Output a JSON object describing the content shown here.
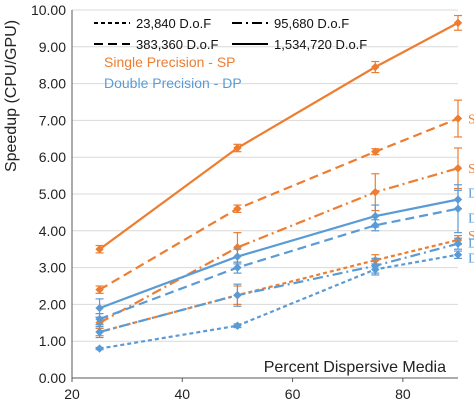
{
  "chart_data": {
    "type": "line",
    "xlabel": "Percent Dispersive Media",
    "ylabel": "Speedup (CPU/GPU)",
    "xlim": [
      20,
      90
    ],
    "ylim": [
      0,
      10
    ],
    "xticks": [
      "20",
      "40",
      "60",
      "80"
    ],
    "yticks": [
      "0.00",
      "1.00",
      "2.00",
      "3.00",
      "4.00",
      "5.00",
      "6.00",
      "7.00",
      "8.00",
      "9.00",
      "10.00"
    ],
    "grid": "horizontal",
    "colors": {
      "sp": "#ED7D31",
      "dp": "#5B9BD5",
      "legend_line": "#000000"
    },
    "legend": [
      {
        "label": "23,840 D.o.F",
        "dash": "short"
      },
      {
        "label": "95,680 D.o.F",
        "dash": "dashdot"
      },
      {
        "label": "383,360 D.o.F",
        "dash": "long"
      },
      {
        "label": "1,534,720 D.o.F",
        "dash": "solid"
      }
    ],
    "precision_notes": [
      {
        "label": "Single Precision - SP",
        "color": "#ED7D31"
      },
      {
        "label": "Double Precision - DP",
        "color": "#5B9BD5"
      }
    ],
    "series": [
      {
        "precision": "SP",
        "dof": "1,534,720 D.o.F",
        "dash": "solid",
        "color": "#ED7D31",
        "marker": "diamond",
        "x": [
          25,
          50,
          75,
          90
        ],
        "y": [
          3.5,
          6.25,
          8.45,
          9.65
        ],
        "err": [
          0.1,
          0.1,
          0.15,
          0.2
        ],
        "end_label": ""
      },
      {
        "precision": "SP",
        "dof": "383,360 D.o.F",
        "dash": "long",
        "color": "#ED7D31",
        "marker": "diamond",
        "x": [
          25,
          50,
          75,
          90
        ],
        "y": [
          2.4,
          4.6,
          6.15,
          7.05
        ],
        "err": [
          0.1,
          0.1,
          0.08,
          0.5
        ],
        "end_label": "SP"
      },
      {
        "precision": "SP",
        "dof": "95,680 D.o.F",
        "dash": "dashdot",
        "color": "#ED7D31",
        "marker": "diamond",
        "x": [
          25,
          50,
          75,
          90
        ],
        "y": [
          1.5,
          3.55,
          5.05,
          5.7
        ],
        "err": [
          0.15,
          0.4,
          0.5,
          0.55
        ],
        "end_label": "SP"
      },
      {
        "precision": "SP",
        "dof": "23,840 D.o.F",
        "dash": "short",
        "color": "#ED7D31",
        "marker": "diamond",
        "x": [
          25,
          50,
          75,
          90
        ],
        "y": [
          1.25,
          2.25,
          3.2,
          3.75
        ],
        "err": [
          0.1,
          0.25,
          0.15,
          0.12
        ],
        "end_label": "SP"
      },
      {
        "precision": "DP",
        "dof": "1,534,720 D.o.F",
        "dash": "solid",
        "color": "#5B9BD5",
        "marker": "diamond",
        "x": [
          25,
          50,
          75,
          90
        ],
        "y": [
          1.9,
          3.3,
          4.4,
          4.85
        ],
        "err": [
          0.25,
          0.2,
          0.3,
          0.25
        ],
        "end_label": "DP"
      },
      {
        "precision": "DP",
        "dof": "383,360 D.o.F",
        "dash": "long",
        "color": "#5B9BD5",
        "marker": "diamond",
        "x": [
          25,
          50,
          75,
          90
        ],
        "y": [
          1.6,
          3.0,
          4.15,
          4.6
        ],
        "err": [
          0.15,
          0.15,
          0.15,
          0.65
        ],
        "end_label": "DP"
      },
      {
        "precision": "DP",
        "dof": "95,680 D.o.F",
        "dash": "dashdot",
        "color": "#5B9BD5",
        "marker": "diamond",
        "x": [
          25,
          50,
          75,
          90
        ],
        "y": [
          1.25,
          2.25,
          3.05,
          3.65
        ],
        "err": [
          0.15,
          0.3,
          0.2,
          0.15
        ],
        "end_label": "DP"
      },
      {
        "precision": "DP",
        "dof": "23,840 D.o.F",
        "dash": "short",
        "color": "#5B9BD5",
        "marker": "diamond",
        "x": [
          25,
          50,
          75,
          90
        ],
        "y": [
          0.8,
          1.42,
          2.95,
          3.35
        ],
        "err": [
          0.03,
          0.05,
          0.15,
          0.1
        ],
        "end_label": "DP"
      }
    ]
  }
}
